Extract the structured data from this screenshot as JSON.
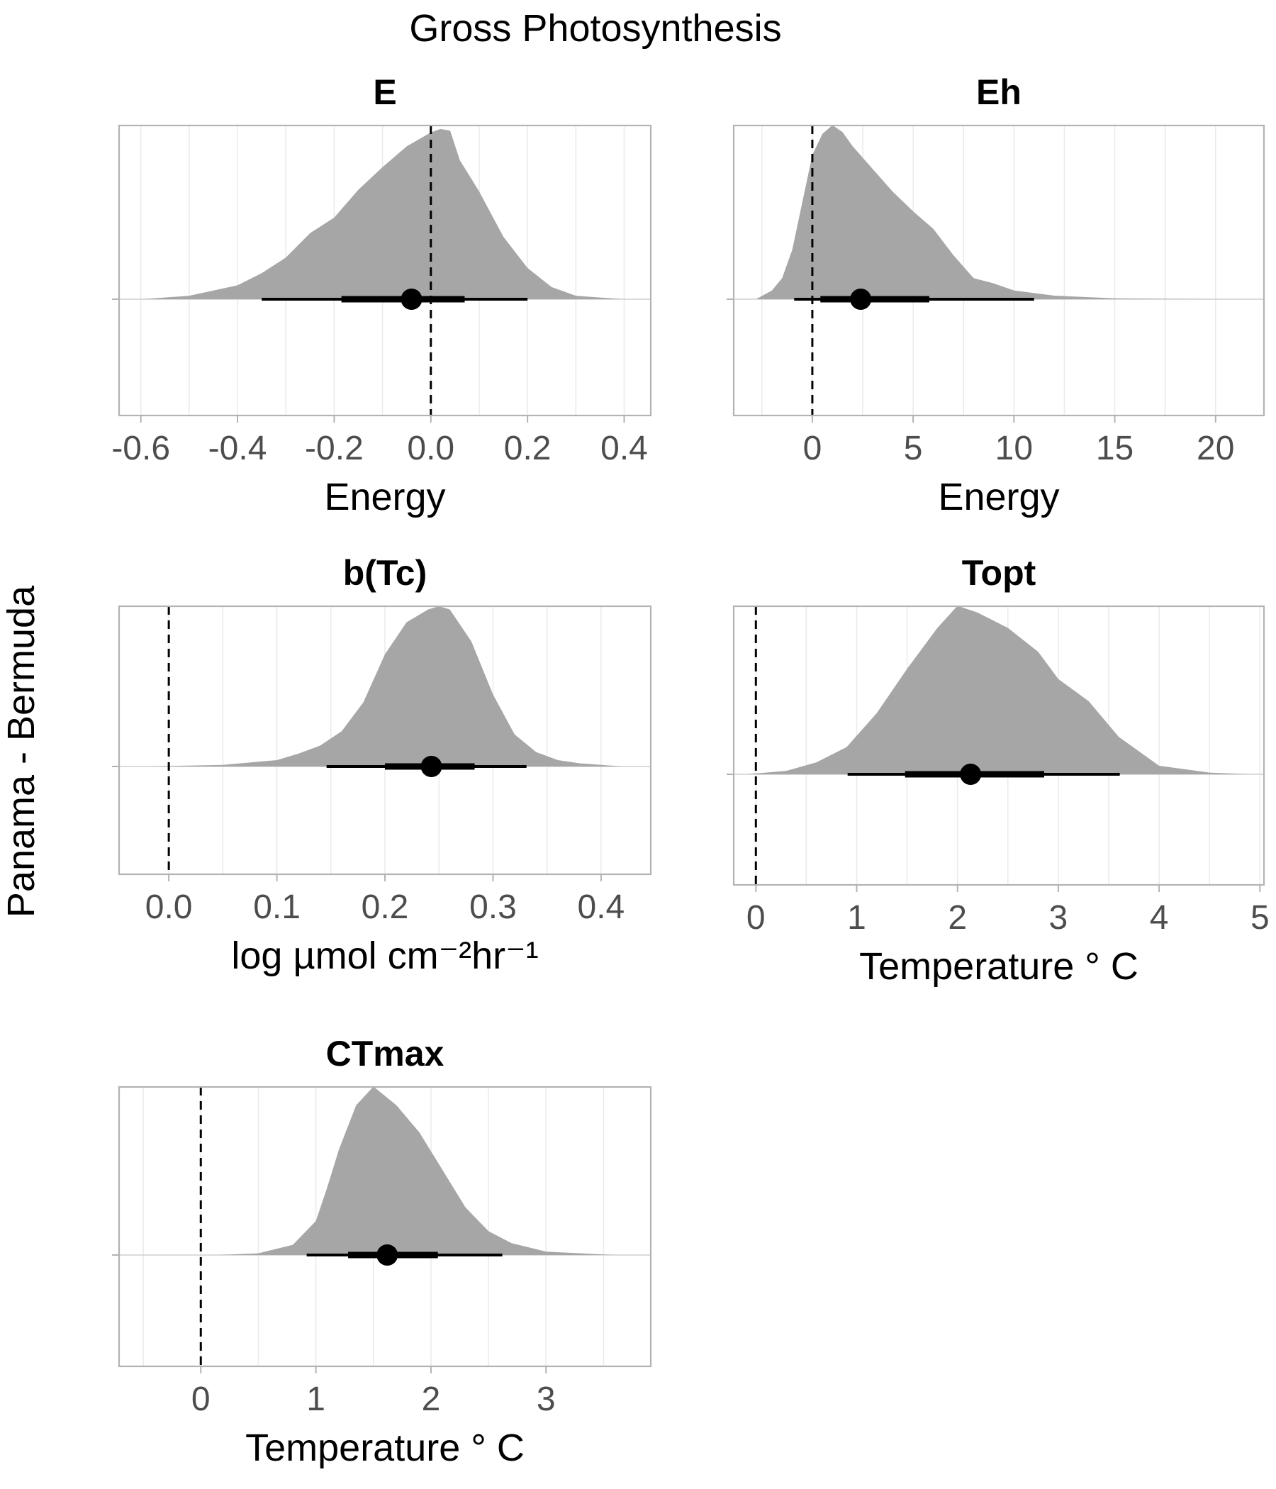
{
  "figure": {
    "title": "Gross Photosynthesis",
    "ylabel": "Panama - Bermuda"
  },
  "chart_data": [
    {
      "type": "area",
      "name": "E",
      "title": "E",
      "xlabel": "Energy",
      "xlim": [
        -0.645,
        0.455
      ],
      "xticks": [
        -0.6,
        -0.4,
        -0.2,
        0.0,
        0.2,
        0.4
      ],
      "xtick_labels": [
        "-0.6",
        "-0.4",
        "-0.2",
        "0.0",
        "0.2",
        "0.4"
      ],
      "ref_line": 0,
      "density": {
        "x": [
          -0.6,
          -0.5,
          -0.45,
          -0.4,
          -0.35,
          -0.3,
          -0.25,
          -0.2,
          -0.15,
          -0.1,
          -0.05,
          0.0,
          0.02,
          0.04,
          0.06,
          0.1,
          0.15,
          0.2,
          0.25,
          0.3,
          0.35,
          0.4
        ],
        "y": [
          0.0,
          0.02,
          0.05,
          0.08,
          0.15,
          0.24,
          0.38,
          0.47,
          0.63,
          0.76,
          0.88,
          0.96,
          0.98,
          0.97,
          0.8,
          0.62,
          0.36,
          0.18,
          0.07,
          0.02,
          0.01,
          0.0
        ]
      },
      "point": -0.04,
      "interval_inner": [
        -0.185,
        0.07
      ],
      "interval_outer": [
        -0.35,
        0.2
      ]
    },
    {
      "type": "area",
      "name": "Eh",
      "title": "Eh",
      "xlabel": "Energy",
      "xlim": [
        -3.9,
        22.4
      ],
      "xticks": [
        0,
        5,
        10,
        15,
        20
      ],
      "xtick_labels": [
        "0",
        "5",
        "10",
        "15",
        "20"
      ],
      "ref_line": 0,
      "density": {
        "x": [
          -2.8,
          -2,
          -1.5,
          -1,
          -0.5,
          0,
          0.5,
          1,
          1.5,
          2,
          3,
          4,
          5,
          6,
          7,
          8,
          9,
          10,
          12,
          15,
          18,
          21
        ],
        "y": [
          0.0,
          0.05,
          0.12,
          0.28,
          0.55,
          0.82,
          0.94,
          0.99,
          0.95,
          0.87,
          0.74,
          0.61,
          0.5,
          0.4,
          0.25,
          0.12,
          0.09,
          0.05,
          0.02,
          0.005,
          0.002,
          0.0
        ]
      },
      "point": 2.4,
      "interval_inner": [
        0.4,
        5.8
      ],
      "interval_outer": [
        -0.9,
        11.0
      ]
    },
    {
      "type": "area",
      "name": "b(Tc)",
      "title": "b(Tc)",
      "xlabel": "log µmol cm⁻²hr⁻¹",
      "xlim": [
        -0.046,
        0.446
      ],
      "xticks": [
        0.0,
        0.1,
        0.2,
        0.3,
        0.4
      ],
      "xtick_labels": [
        "0.0",
        "0.1",
        "0.2",
        "0.3",
        "0.4"
      ],
      "ref_line": 0,
      "density": {
        "x": [
          -0.02,
          0.05,
          0.1,
          0.12,
          0.14,
          0.16,
          0.18,
          0.2,
          0.22,
          0.24,
          0.25,
          0.26,
          0.28,
          0.3,
          0.32,
          0.34,
          0.36,
          0.38,
          0.42
        ],
        "y": [
          0.0,
          0.01,
          0.04,
          0.08,
          0.13,
          0.22,
          0.4,
          0.7,
          0.9,
          0.98,
          1.0,
          0.98,
          0.78,
          0.45,
          0.2,
          0.09,
          0.04,
          0.02,
          0.0
        ]
      },
      "point": 0.243,
      "interval_inner": [
        0.2,
        0.283
      ],
      "interval_outer": [
        0.146,
        0.331
      ]
    },
    {
      "type": "area",
      "name": "Topt",
      "title": "Topt",
      "xlabel": "Temperature ° C",
      "xlim": [
        -0.22,
        5.04
      ],
      "xticks": [
        0,
        1,
        2,
        3,
        4,
        5
      ],
      "xtick_labels": [
        "0",
        "1",
        "2",
        "3",
        "4",
        "5"
      ],
      "ref_line": 0,
      "density": {
        "x": [
          -0.1,
          0.3,
          0.6,
          0.9,
          1.2,
          1.5,
          1.8,
          2.0,
          2.2,
          2.5,
          2.8,
          3.0,
          3.3,
          3.6,
          4.0,
          4.5,
          4.9
        ],
        "y": [
          0.0,
          0.02,
          0.07,
          0.16,
          0.36,
          0.62,
          0.86,
          0.99,
          0.95,
          0.86,
          0.72,
          0.56,
          0.43,
          0.22,
          0.05,
          0.01,
          0.0
        ]
      },
      "point": 2.13,
      "interval_inner": [
        1.48,
        2.86
      ],
      "interval_outer": [
        0.91,
        3.61
      ]
    },
    {
      "type": "area",
      "name": "CTmax",
      "title": "CTmax",
      "xlabel": "Temperature ° C",
      "xlim": [
        -0.71,
        3.91
      ],
      "xticks": [
        0,
        1,
        2,
        3
      ],
      "xtick_labels": [
        "0",
        "1",
        "2",
        "3"
      ],
      "ref_line": 0,
      "density": {
        "x": [
          0.15,
          0.5,
          0.8,
          1.0,
          1.1,
          1.2,
          1.35,
          1.5,
          1.7,
          1.9,
          2.1,
          2.3,
          2.5,
          2.7,
          3.0,
          3.3,
          3.6
        ],
        "y": [
          0.0,
          0.01,
          0.06,
          0.2,
          0.4,
          0.62,
          0.88,
          0.99,
          0.88,
          0.72,
          0.5,
          0.28,
          0.14,
          0.07,
          0.02,
          0.01,
          0.0
        ]
      },
      "point": 1.62,
      "interval_inner": [
        1.28,
        2.06
      ],
      "interval_outer": [
        0.92,
        2.62
      ]
    }
  ]
}
